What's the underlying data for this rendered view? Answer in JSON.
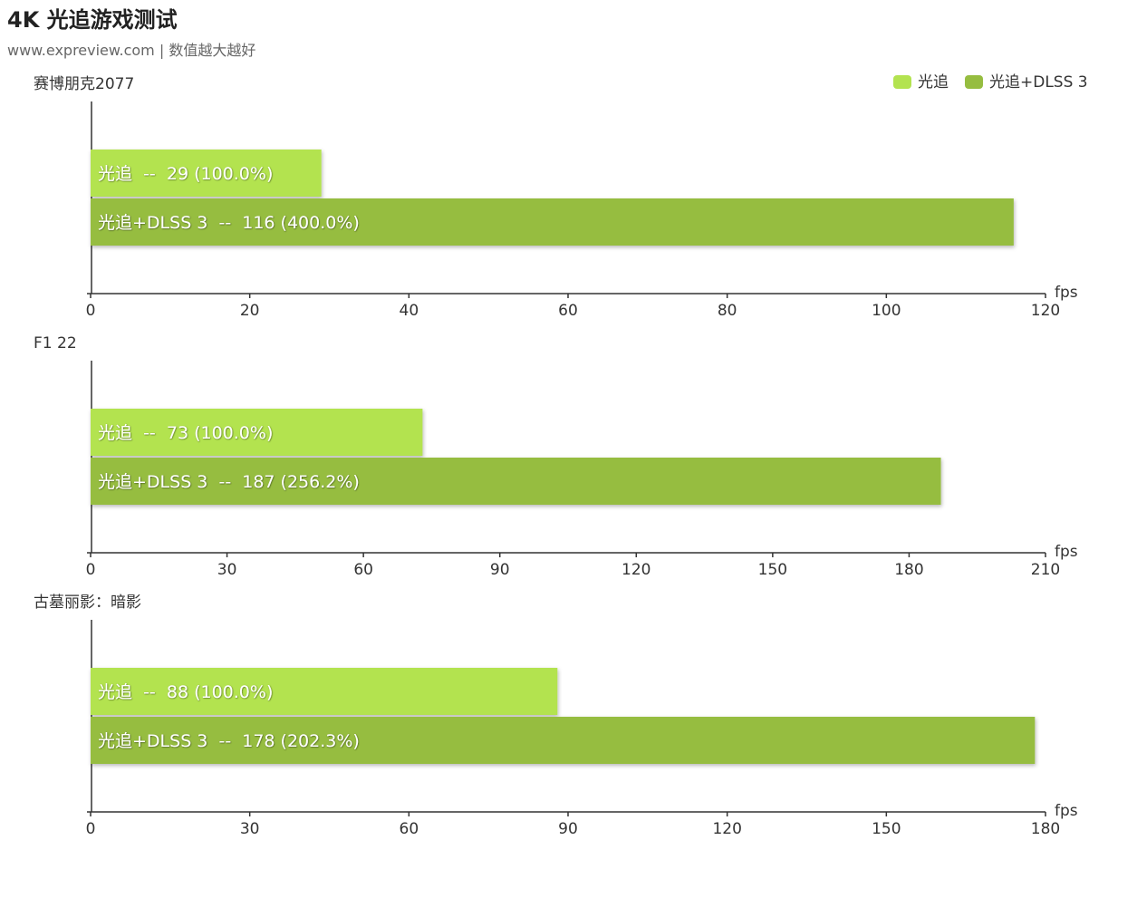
{
  "header": {
    "title": "4K 光追游戏测试",
    "subtitle": "www.expreview.com | 数值越大越好"
  },
  "chart_data": {
    "type": "bar",
    "orientation": "horizontal",
    "unit": "fps",
    "legend": {
      "position": "top-right",
      "items": [
        {
          "label": "光追",
          "color": "#b3e350"
        },
        {
          "label": "光追+DLSS 3",
          "color": "#96bd40"
        }
      ]
    },
    "label_separator": "--",
    "panels": [
      {
        "title": "赛博朋克2077",
        "xlim": [
          0,
          120
        ],
        "ticks": [
          0,
          20,
          40,
          60,
          80,
          100,
          120
        ],
        "bars": [
          {
            "series": "光追",
            "value": 29,
            "percent": "100.0%",
            "color": "#b3e350"
          },
          {
            "series": "光追+DLSS 3",
            "value": 116,
            "percent": "400.0%",
            "color": "#96bd40"
          }
        ]
      },
      {
        "title": "F1 22",
        "xlim": [
          0,
          210
        ],
        "ticks": [
          0,
          30,
          60,
          90,
          120,
          150,
          180,
          210
        ],
        "bars": [
          {
            "series": "光追",
            "value": 73,
            "percent": "100.0%",
            "color": "#b3e350"
          },
          {
            "series": "光追+DLSS 3",
            "value": 187,
            "percent": "256.2%",
            "color": "#96bd40"
          }
        ]
      },
      {
        "title": "古墓丽影：暗影",
        "xlim": [
          0,
          180
        ],
        "ticks": [
          0,
          30,
          60,
          90,
          120,
          150,
          180
        ],
        "bars": [
          {
            "series": "光追",
            "value": 88,
            "percent": "100.0%",
            "color": "#b3e350"
          },
          {
            "series": "光追+DLSS 3",
            "value": 178,
            "percent": "202.3%",
            "color": "#96bd40"
          }
        ]
      }
    ]
  }
}
